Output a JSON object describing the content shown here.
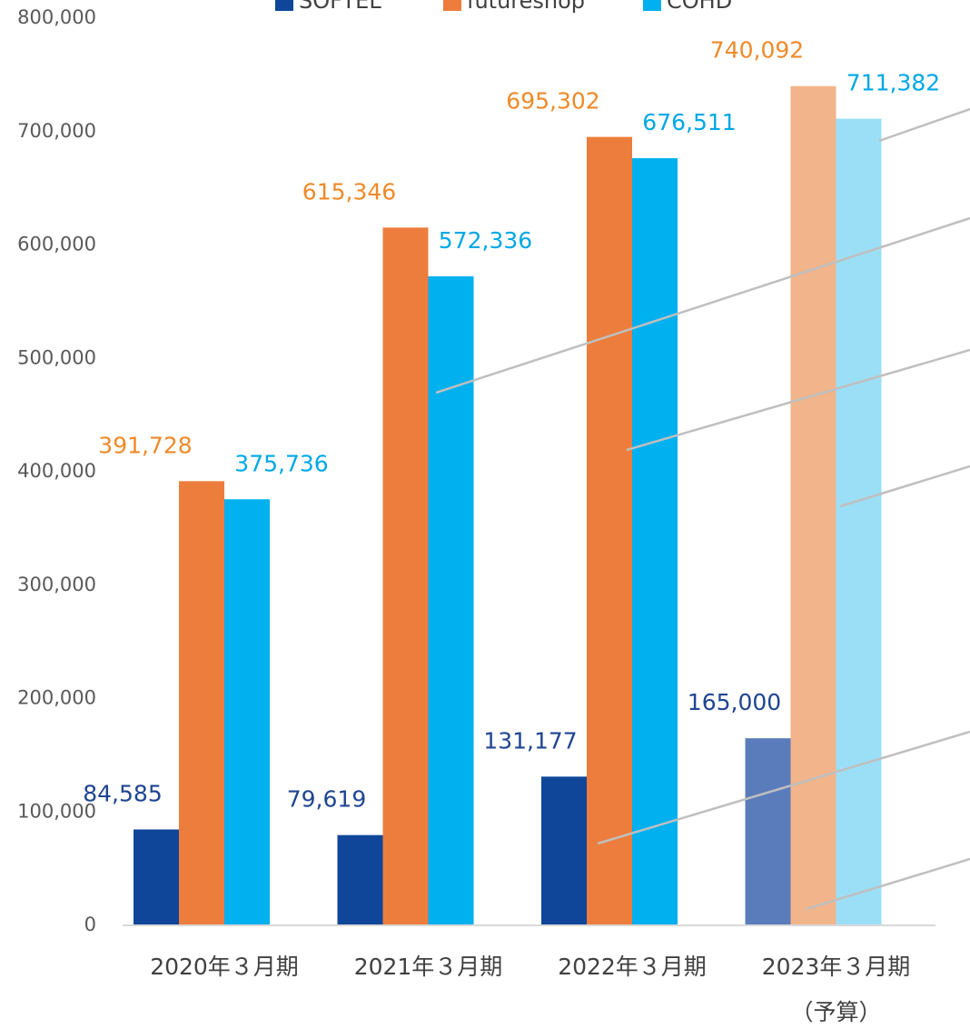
{
  "chart_data": {
    "type": "bar",
    "categories": [
      [
        "2020年３月期"
      ],
      [
        "2021年３月期"
      ],
      [
        "2022年３月期"
      ],
      [
        "2023年３月期",
        "（予算）"
      ]
    ],
    "series": [
      {
        "name": "SOFTEL",
        "color": "#0f4699",
        "colors": [
          "#0f4699",
          "#0f4699",
          "#0f4699",
          "#5b7cbb"
        ],
        "label_color": "#1f4591",
        "values": [
          84585,
          79619,
          131177,
          165000
        ],
        "value_labels": [
          "84,585",
          "79,619",
          "131,177",
          "165,000"
        ]
      },
      {
        "name": "futureshop",
        "color": "#ed7d3c",
        "colors": [
          "#ed7d3c",
          "#ed7d3c",
          "#ed7d3c",
          "#f2b48a"
        ],
        "label_color": "#ee8a2a",
        "values": [
          391728,
          615346,
          695302,
          740092
        ],
        "value_labels": [
          "391,728",
          "615,346",
          "695,302",
          "740,092"
        ]
      },
      {
        "name": "COHD",
        "color": "#00b0ef",
        "colors": [
          "#00b0ef",
          "#00b0ef",
          "#00b0ef",
          "#9bdff7"
        ],
        "label_color": "#00a8e6",
        "values": [
          375736,
          572336,
          676511,
          711382
        ],
        "value_labels": [
          "375,736",
          "572,336",
          "676,511",
          "711,382"
        ]
      }
    ],
    "ylim": [
      0,
      800000
    ],
    "yticks": [
      0,
      {
        "value": 100000,
        "label": "100,000"
      },
      {
        "value": 200000,
        "label": "200,000"
      },
      {
        "value": 300000,
        "label": "300,000"
      },
      {
        "value": 400000,
        "label": "400,000"
      },
      {
        "value": 500000,
        "label": "500,000"
      },
      {
        "value": 600000,
        "label": "600,000"
      },
      {
        "value": 700000,
        "label": "700,000"
      },
      {
        "value": 800000,
        "label": "800,000"
      }
    ],
    "legend": "top"
  }
}
